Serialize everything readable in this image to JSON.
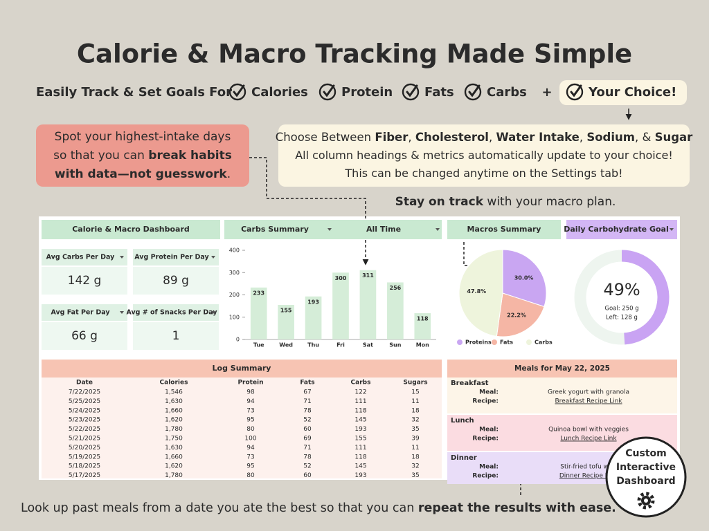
{
  "header": {
    "title": "Calorie & Macro Tracking Made Simple",
    "lead": "Easily Track & Set Goals For",
    "goals": [
      "Calories",
      "Protein",
      "Fats",
      "Carbs"
    ],
    "plus": "+",
    "choice": "Your Choice!"
  },
  "callout_left": {
    "lines": [
      [
        {
          "text": "Spot your highest-intake days",
          "bold": false
        }
      ],
      [
        {
          "text": "so that you can ",
          "bold": false
        },
        {
          "text": "break habits",
          "bold": true
        }
      ],
      [
        {
          "text": "with data—not guesswork",
          "bold": true
        },
        {
          "text": ".",
          "bold": false
        }
      ]
    ]
  },
  "callout_right": {
    "lines": [
      [
        {
          "text": "Choose Between ",
          "bold": false
        },
        {
          "text": "Fiber",
          "bold": true
        },
        {
          "text": ", ",
          "bold": false
        },
        {
          "text": "Cholesterol",
          "bold": true
        },
        {
          "text": ", ",
          "bold": false
        },
        {
          "text": "Water Intake",
          "bold": true
        },
        {
          "text": ", ",
          "bold": false
        },
        {
          "text": "Sodium",
          "bold": true
        },
        {
          "text": ", & ",
          "bold": false
        },
        {
          "text": "Sugar",
          "bold": true
        }
      ],
      [
        {
          "text": "All column headings & metrics automatically update to your choice!",
          "bold": false
        }
      ],
      [
        {
          "text": "This can be changed anytime on the Settings tab!",
          "bold": false
        }
      ]
    ]
  },
  "tagline": [
    {
      "text": "Stay on track",
      "bold": true
    },
    {
      "text": " with your macro plan.",
      "bold": false
    }
  ],
  "dashboard": {
    "title": "Calorie & Macro Dashboard",
    "selectors": {
      "summary": "Carbs Summary",
      "range": "All Time",
      "macros": "Macros Summary",
      "goal": "Daily Carbohydrate Goal"
    },
    "kpis": [
      {
        "label": "Avg Carbs Per Day",
        "value": "142 g"
      },
      {
        "label": "Avg Protein Per Day",
        "value": "89 g"
      },
      {
        "label": "Avg Fat Per Day",
        "value": "66 g"
      },
      {
        "label": "Avg # of Snacks Per Day",
        "value": "1"
      }
    ],
    "goal": {
      "percent": 49,
      "percent_label": "49%",
      "goal": "Goal: 250 g",
      "left": "Left: 128 g"
    },
    "log": {
      "title": "Log Summary",
      "columns": [
        "Date",
        "Calories",
        "Protein",
        "Fats",
        "Carbs",
        "Sugars"
      ],
      "rows": [
        [
          "7/22/2025",
          "1,546",
          "98",
          "67",
          "122",
          "15"
        ],
        [
          "5/25/2025",
          "1,630",
          "94",
          "71",
          "111",
          "11"
        ],
        [
          "5/24/2025",
          "1,660",
          "73",
          "78",
          "118",
          "18"
        ],
        [
          "5/23/2025",
          "1,620",
          "95",
          "52",
          "145",
          "32"
        ],
        [
          "5/22/2025",
          "1,780",
          "80",
          "60",
          "193",
          "35"
        ],
        [
          "5/21/2025",
          "1,750",
          "100",
          "69",
          "155",
          "39"
        ],
        [
          "5/20/2025",
          "1,630",
          "94",
          "71",
          "111",
          "11"
        ],
        [
          "5/19/2025",
          "1,660",
          "73",
          "78",
          "118",
          "18"
        ],
        [
          "5/18/2025",
          "1,620",
          "95",
          "52",
          "145",
          "32"
        ],
        [
          "5/17/2025",
          "1,780",
          "80",
          "60",
          "193",
          "35"
        ]
      ]
    },
    "meals": {
      "title": "Meals for  May 22, 2025",
      "meal_label": "Meal:",
      "recipe_label": "Recipe:",
      "sections": [
        {
          "name": "Breakfast",
          "meal": "Greek yogurt with granola",
          "recipe": "Breakfast Recipe Link"
        },
        {
          "name": "Lunch",
          "meal": "Quinoa bowl with veggies",
          "recipe": "Lunch Recipe Link"
        },
        {
          "name": "Dinner",
          "meal": "Stir-fried tofu with",
          "recipe": "Dinner Recipe Link"
        }
      ]
    }
  },
  "badge": [
    "Custom",
    "Interactive",
    "Dashboard"
  ],
  "footer": [
    {
      "text": "Look up past meals from a date you ate the best so that you can ",
      "bold": false
    },
    {
      "text": "repeat the results with ease.",
      "bold": true
    }
  ],
  "chart_data": [
    {
      "type": "bar",
      "categories": [
        "Tue",
        "Wed",
        "Thu",
        "Fri",
        "Sat",
        "Sun",
        "Mon"
      ],
      "values": [
        233,
        155,
        193,
        300,
        311,
        256,
        118
      ],
      "ylim": [
        0,
        400
      ],
      "yticks": [
        0,
        100,
        200,
        300,
        400
      ],
      "color": "#d5edd8"
    },
    {
      "type": "pie",
      "categories": [
        "Proteins",
        "Fats",
        "Carbs"
      ],
      "values": [
        30.0,
        22.2,
        47.8
      ],
      "value_labels": [
        "30.0%",
        "22.2%",
        "47.8%"
      ],
      "colors": [
        "#c9a6f2",
        "#f5b6a5",
        "#eef4dc"
      ]
    }
  ]
}
